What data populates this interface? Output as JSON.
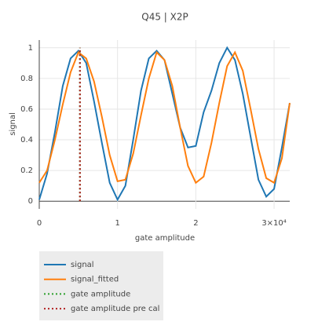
{
  "chart_data": {
    "type": "line",
    "title": "Q45 | X2P",
    "x_label": "gate amplitude",
    "y_label": "signal",
    "x": [
      0,
      1000,
      2000,
      3000,
      4000,
      5000,
      6000,
      7000,
      8000,
      9000,
      10000,
      11000,
      12000,
      13000,
      14000,
      15000,
      16000,
      17000,
      18000,
      19000,
      20000,
      21000,
      22000,
      23000,
      24000,
      25000,
      26000,
      27000,
      28000,
      29000,
      30000,
      31000,
      32000
    ],
    "series": [
      {
        "name": "signal",
        "color": "#1f77b4",
        "dash": "solid",
        "values": [
          0.01,
          0.18,
          0.45,
          0.75,
          0.93,
          0.98,
          0.9,
          0.65,
          0.38,
          0.12,
          0.01,
          0.1,
          0.4,
          0.72,
          0.93,
          0.98,
          0.92,
          0.7,
          0.48,
          0.35,
          0.36,
          0.58,
          0.72,
          0.9,
          1.0,
          0.92,
          0.7,
          0.42,
          0.14,
          0.03,
          0.08,
          0.35,
          0.64
        ]
      },
      {
        "name": "signal_fitted",
        "color": "#ff7f0e",
        "dash": "solid",
        "values": [
          0.12,
          0.2,
          0.4,
          0.63,
          0.84,
          0.97,
          0.93,
          0.78,
          0.55,
          0.3,
          0.13,
          0.14,
          0.31,
          0.56,
          0.8,
          0.97,
          0.92,
          0.75,
          0.48,
          0.23,
          0.12,
          0.16,
          0.38,
          0.64,
          0.88,
          0.97,
          0.85,
          0.6,
          0.34,
          0.15,
          0.12,
          0.28,
          0.64
        ]
      },
      {
        "name": "gate amplitude",
        "color": "#2ca02c",
        "dash": "dot",
        "x": [
          5200,
          5200
        ],
        "values": [
          0,
          1
        ]
      },
      {
        "name": "gate amplitude pre cal",
        "color": "#b22222",
        "dash": "dot",
        "x": [
          5200,
          5200
        ],
        "values": [
          0,
          1
        ]
      }
    ],
    "xlim": [
      0,
      32000
    ],
    "ylim": [
      -0.05,
      1.05
    ],
    "xticks": [
      0,
      {
        "value": 10000,
        "label": "1"
      },
      {
        "value": 20000,
        "label": "2"
      },
      {
        "value": 30000,
        "label": "3×10⁴"
      }
    ],
    "yticks": [
      0,
      0.2,
      0.4,
      0.6,
      0.8,
      1
    ],
    "grid": true,
    "legend": "bottom-left"
  }
}
